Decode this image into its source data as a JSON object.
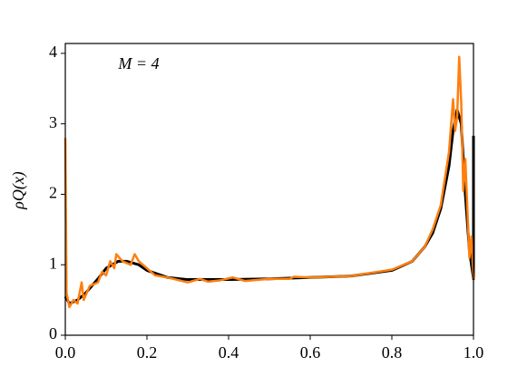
{
  "chart_data": {
    "type": "line",
    "ylabel": "ρQ(x)",
    "annotation": "M = 4",
    "xlim": [
      0,
      1
    ],
    "ylim": [
      0,
      4.14
    ],
    "xticks": [
      {
        "value": 0,
        "label": "0.0"
      },
      0.2,
      0.4,
      0.6,
      0.8,
      {
        "value": 1,
        "label": "1.0"
      }
    ],
    "yticks": [
      0,
      1,
      2,
      3,
      4
    ],
    "series": [
      {
        "color": "#000000",
        "x": [
          0,
          0.01,
          0.03,
          0.05,
          0.08,
          0.1,
          0.13,
          0.15,
          0.18,
          0.2,
          0.25,
          0.3,
          0.4,
          0.5,
          0.6,
          0.7,
          0.8,
          0.85,
          0.88,
          0.9,
          0.92,
          0.94,
          0.95,
          0.96,
          0.97,
          0.98,
          0.99,
          0.995,
          1.0,
          1.0
        ],
        "values": [
          0.55,
          0.45,
          0.5,
          0.6,
          0.8,
          0.95,
          1.05,
          1.05,
          1.0,
          0.92,
          0.82,
          0.79,
          0.79,
          0.8,
          0.82,
          0.84,
          0.92,
          1.05,
          1.25,
          1.45,
          1.8,
          2.4,
          2.9,
          3.2,
          3.0,
          2.0,
          1.2,
          1.0,
          0.8,
          2.83
        ]
      },
      {
        "color": "#ff7f0e",
        "x": [
          0,
          0.003,
          0.01,
          0.02,
          0.03,
          0.04,
          0.045,
          0.06,
          0.08,
          0.09,
          0.1,
          0.11,
          0.12,
          0.125,
          0.14,
          0.16,
          0.17,
          0.18,
          0.2,
          0.22,
          0.25,
          0.3,
          0.33,
          0.35,
          0.38,
          0.41,
          0.44,
          0.5,
          0.55,
          0.56,
          0.6,
          0.7,
          0.8,
          0.85,
          0.88,
          0.9,
          0.92,
          0.94,
          0.95,
          0.955,
          0.96,
          0.965,
          0.97,
          0.975,
          0.98,
          0.985,
          0.99,
          0.995,
          1.0
        ],
        "values": [
          2.8,
          0.6,
          0.4,
          0.5,
          0.45,
          0.75,
          0.5,
          0.7,
          0.75,
          0.9,
          0.85,
          1.05,
          0.95,
          1.15,
          1.05,
          1.0,
          1.15,
          1.05,
          0.95,
          0.85,
          0.82,
          0.75,
          0.8,
          0.76,
          0.78,
          0.82,
          0.77,
          0.8,
          0.8,
          0.83,
          0.82,
          0.84,
          0.93,
          1.05,
          1.25,
          1.5,
          1.85,
          2.6,
          3.35,
          2.9,
          3.1,
          3.95,
          3.3,
          2.05,
          2.5,
          1.8,
          1.1,
          1.4,
          0.8
        ]
      }
    ]
  }
}
